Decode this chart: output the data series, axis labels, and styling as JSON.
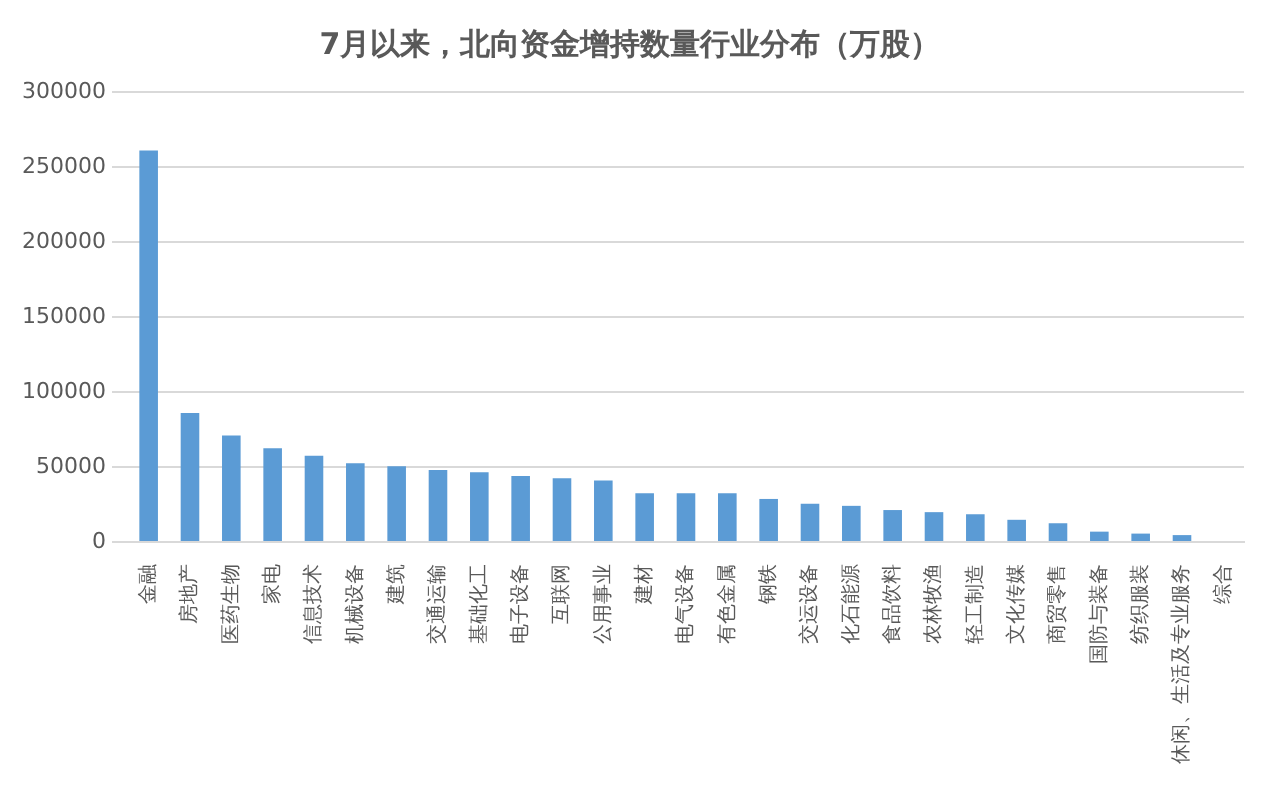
{
  "chart_data": {
    "type": "bar",
    "title": "7月以来，北向资金增持数量行业分布（万股）",
    "categories": [
      "金融",
      "房地产",
      "医药生物",
      "家电",
      "信息技术",
      "机械设备",
      "建筑",
      "交通运输",
      "基础化工",
      "电子设备",
      "互联网",
      "公用事业",
      "建材",
      "电气设备",
      "有色金属",
      "钢铁",
      "交运设备",
      "化石能源",
      "食品饮料",
      "农林牧渔",
      "轻工制造",
      "文化传媒",
      "商贸零售",
      "国防与装备",
      "纺织服装",
      "休闲、生活及专业服务",
      "综合"
    ],
    "values": [
      261000,
      86000,
      71000,
      62500,
      57500,
      52500,
      50500,
      48000,
      46500,
      44000,
      42500,
      41000,
      32500,
      32500,
      32500,
      28700,
      25500,
      24100,
      21300,
      19900,
      18500,
      14800,
      12500,
      6900,
      5600,
      4600,
      0
    ],
    "color": "#5b9bd5",
    "ylim": [
      0,
      300000
    ],
    "yticks": [
      0,
      50000,
      100000,
      150000,
      200000,
      250000,
      300000
    ],
    "grid": "y",
    "legend": false
  }
}
